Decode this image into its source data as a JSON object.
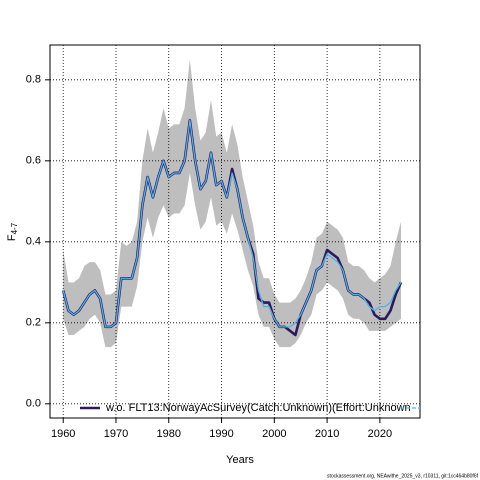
{
  "chart_data": {
    "type": "line",
    "xlabel": "Years",
    "ylabel": "F",
    "ylabel_sub": "4-7",
    "footer": "stockassessment.org, NEAwithe_2025_v3, r10311, git:1cc464b80f6f",
    "x": [
      1960,
      1961,
      1962,
      1963,
      1964,
      1965,
      1966,
      1967,
      1968,
      1969,
      1970,
      1971,
      1972,
      1973,
      1974,
      1975,
      1976,
      1977,
      1978,
      1979,
      1980,
      1981,
      1982,
      1983,
      1984,
      1985,
      1986,
      1987,
      1988,
      1989,
      1990,
      1991,
      1992,
      1993,
      1994,
      1995,
      1996,
      1997,
      1998,
      1999,
      2000,
      2001,
      2002,
      2003,
      2004,
      2005,
      2006,
      2007,
      2008,
      2009,
      2010,
      2011,
      2012,
      2013,
      2014,
      2015,
      2016,
      2017,
      2018,
      2019,
      2020,
      2021,
      2022,
      2023,
      2024
    ],
    "band": {
      "color": "#bebebe",
      "upper": [
        0.38,
        0.3,
        0.3,
        0.31,
        0.34,
        0.35,
        0.35,
        0.33,
        0.27,
        0.27,
        0.28,
        0.4,
        0.39,
        0.4,
        0.45,
        0.6,
        0.68,
        0.62,
        0.67,
        0.73,
        0.68,
        0.69,
        0.69,
        0.73,
        0.85,
        0.73,
        0.65,
        0.67,
        0.75,
        0.66,
        0.67,
        0.62,
        0.69,
        0.64,
        0.56,
        0.5,
        0.44,
        0.35,
        0.31,
        0.31,
        0.27,
        0.25,
        0.25,
        0.25,
        0.26,
        0.28,
        0.31,
        0.35,
        0.41,
        0.42,
        0.45,
        0.44,
        0.43,
        0.41,
        0.35,
        0.34,
        0.34,
        0.33,
        0.31,
        0.3,
        0.31,
        0.32,
        0.34,
        0.4,
        0.45
      ],
      "lower": [
        0.21,
        0.17,
        0.17,
        0.18,
        0.19,
        0.21,
        0.22,
        0.2,
        0.14,
        0.14,
        0.15,
        0.24,
        0.24,
        0.24,
        0.29,
        0.4,
        0.46,
        0.41,
        0.46,
        0.49,
        0.46,
        0.47,
        0.47,
        0.49,
        0.57,
        0.49,
        0.43,
        0.45,
        0.51,
        0.44,
        0.45,
        0.42,
        0.47,
        0.43,
        0.38,
        0.33,
        0.29,
        0.22,
        0.19,
        0.19,
        0.16,
        0.14,
        0.14,
        0.14,
        0.15,
        0.17,
        0.2,
        0.22,
        0.27,
        0.28,
        0.3,
        0.29,
        0.28,
        0.26,
        0.22,
        0.21,
        0.21,
        0.2,
        0.18,
        0.18,
        0.18,
        0.18,
        0.19,
        0.2,
        0.21
      ]
    },
    "series": [
      {
        "name": "w.o. FLT13:NorwayAcSurvey(Catch:Unknown)(Effort:Unknown",
        "color": "#2b1a5e",
        "values": [
          0.28,
          0.23,
          0.22,
          0.23,
          0.25,
          0.27,
          0.28,
          0.26,
          0.19,
          0.19,
          0.2,
          0.31,
          0.31,
          0.31,
          0.36,
          0.49,
          0.56,
          0.51,
          0.56,
          0.6,
          0.56,
          0.57,
          0.57,
          0.6,
          0.7,
          0.6,
          0.53,
          0.55,
          0.62,
          0.54,
          0.55,
          0.51,
          0.58,
          0.53,
          0.46,
          0.41,
          0.37,
          0.26,
          0.25,
          0.25,
          0.21,
          0.19,
          0.19,
          0.18,
          0.17,
          0.22,
          0.25,
          0.28,
          0.33,
          0.34,
          0.38,
          0.37,
          0.36,
          0.33,
          0.28,
          0.27,
          0.27,
          0.26,
          0.25,
          0.22,
          0.21,
          0.21,
          0.23,
          0.27,
          0.3
        ]
      },
      {
        "color": "#4fb3ea",
        "values": [
          0.28,
          0.23,
          0.22,
          0.23,
          0.25,
          0.27,
          0.28,
          0.26,
          0.19,
          0.19,
          0.2,
          0.31,
          0.31,
          0.31,
          0.36,
          0.49,
          0.56,
          0.51,
          0.56,
          0.6,
          0.56,
          0.57,
          0.57,
          0.6,
          0.7,
          0.6,
          0.53,
          0.55,
          0.62,
          0.54,
          0.55,
          0.51,
          0.57,
          0.53,
          0.46,
          0.41,
          0.36,
          0.28,
          0.24,
          0.24,
          0.21,
          0.19,
          0.19,
          0.19,
          0.2,
          0.22,
          0.25,
          0.28,
          0.33,
          0.34,
          0.37,
          0.36,
          0.35,
          0.33,
          0.28,
          0.27,
          0.27,
          0.26,
          0.24,
          0.23,
          0.24,
          0.24,
          0.25,
          0.28,
          0.3
        ]
      }
    ],
    "xlim": [
      1957.5,
      2027.6
    ],
    "xticks": [
      1960,
      1970,
      1980,
      1990,
      2000,
      2010,
      2020
    ],
    "ylim": [
      -0.035,
      0.886
    ],
    "yticks": [
      {
        "value": 0,
        "label": "0.0"
      },
      0.2,
      0.4,
      0.6,
      0.8
    ],
    "grid": true
  }
}
